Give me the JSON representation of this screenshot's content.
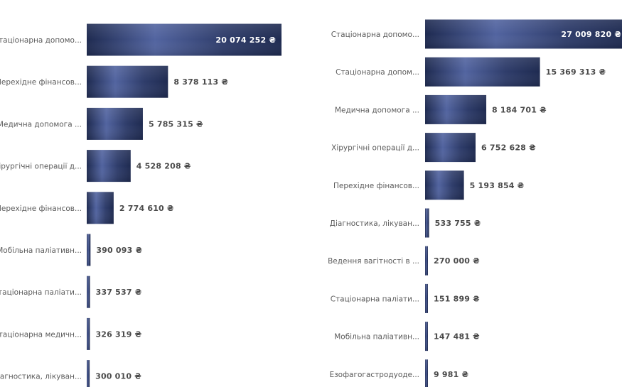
{
  "colors": {
    "bar": "#2f3d6b",
    "bar_edge": "#1e2a50",
    "bar_highlight": "#5264a0"
  },
  "chart_data": [
    {
      "type": "bar",
      "orientation": "horizontal",
      "categories": [
        "Стаціонарна допомо...",
        "Перехідне фінансов...",
        "Медична допомога ...",
        "Хірургічні операції д...",
        "Перехідне фінансов...",
        "Мобільна паліативн...",
        "Стаціонарна паліати...",
        "Стаціонарна медичн...",
        "Діагностика, лікуван..."
      ],
      "values": [
        20074252,
        8378113,
        5785315,
        4528208,
        2774610,
        390093,
        337537,
        326319,
        300010
      ],
      "value_labels": [
        "20 074 252 ₴",
        "8 378 113 ₴",
        "5 785 315 ₴",
        "4 528 208 ₴",
        "2 774 610 ₴",
        "390 093 ₴",
        "337 537 ₴",
        "326 319 ₴",
        "300 010 ₴"
      ],
      "unit": "₴"
    },
    {
      "type": "bar",
      "orientation": "horizontal",
      "categories": [
        "Стаціонарна допомо...",
        "Стаціонарна допом...",
        "Медична допомога ...",
        "Хірургічні операції д...",
        "Перехідне фінансов...",
        "Діагностика, лікуван...",
        "Ведення вагітності в ...",
        "Стаціонарна паліати...",
        "Мобільна паліативн...",
        "Езофагогастродуоде..."
      ],
      "values": [
        27009820,
        15369313,
        8184701,
        6752628,
        5193854,
        533755,
        270000,
        151899,
        147481,
        9981
      ],
      "value_labels": [
        "27 009 820 ₴",
        "15 369 313 ₴",
        "8 184 701 ₴",
        "6 752 628 ₴",
        "5 193 854 ₴",
        "533 755 ₴",
        "270 000 ₴",
        "151 899 ₴",
        "147 481 ₴",
        "9 981 ₴"
      ],
      "unit": "₴"
    }
  ]
}
